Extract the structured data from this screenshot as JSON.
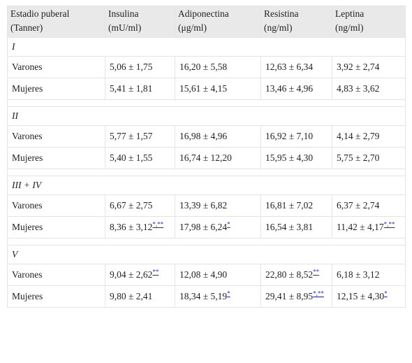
{
  "table": {
    "header": [
      [
        "Estadio puberal",
        "(Tanner)"
      ],
      [
        "Insulina",
        "(mU/ml)"
      ],
      [
        "Adiponectina",
        "(μg/ml)"
      ],
      [
        "Resistina",
        "(ng/ml)"
      ],
      [
        "Leptina",
        "(ng/ml)"
      ]
    ],
    "groups": [
      {
        "stage": "I",
        "rows": [
          {
            "label": "Varones",
            "cells": [
              {
                "text": "5,06 ± 1,75"
              },
              {
                "text": "16,20 ± 5,58"
              },
              {
                "text": "12,63 ± 6,34"
              },
              {
                "text": "3,92 ± 2,74"
              }
            ]
          },
          {
            "label": "Mujeres",
            "cells": [
              {
                "text": "5,41 ± 1,81"
              },
              {
                "text": "15,61 ± 4,15"
              },
              {
                "text": "13,46 ± 4,96"
              },
              {
                "text": "4,83 ± 3,62"
              }
            ]
          }
        ]
      },
      {
        "stage": "II",
        "rows": [
          {
            "label": "Varones",
            "cells": [
              {
                "text": "5,77 ± 1,57"
              },
              {
                "text": "16,98 ± 4,96"
              },
              {
                "text": "16,92 ± 7,10"
              },
              {
                "text": "4,14 ± 2,79"
              }
            ]
          },
          {
            "label": "Mujeres",
            "cells": [
              {
                "text": "5,40 ± 1,55"
              },
              {
                "text": "16,74 ± 12,20"
              },
              {
                "text": "15,95 ± 4,30"
              },
              {
                "text": "5,75 ± 2,70"
              }
            ]
          }
        ]
      },
      {
        "stage": "III + IV",
        "rows": [
          {
            "label": "Varones",
            "cells": [
              {
                "text": "6,67 ± 2,75"
              },
              {
                "text": "13,39 ± 6,82"
              },
              {
                "text": "16,81 ± 7,02"
              },
              {
                "text": "6,37 ± 2,74"
              }
            ]
          },
          {
            "label": "Mujeres",
            "cells": [
              {
                "text": "8,36 ± 3,12",
                "note": "*,**"
              },
              {
                "text": "17,98 ± 6,24",
                "note": "*"
              },
              {
                "text": "16,54 ± 3,81"
              },
              {
                "text": "11,42 ± 4,17",
                "note": "*,**"
              }
            ]
          }
        ]
      },
      {
        "stage": "V",
        "rows": [
          {
            "label": "Varones",
            "cells": [
              {
                "text": "9,04 ± 2,62",
                "note": "**"
              },
              {
                "text": "12,08 ± 4,90"
              },
              {
                "text": "22,80 ± 8,52",
                "note": "**"
              },
              {
                "text": "6,18 ± 3,12"
              }
            ]
          },
          {
            "label": "Mujeres",
            "cells": [
              {
                "text": "9,80 ± 2,41"
              },
              {
                "text": "18,34 ± 5,19",
                "note": "*"
              },
              {
                "text": "29,41 ± 8,95",
                "note": "*,**"
              },
              {
                "text": "12,15 ± 4,30",
                "note": "*"
              }
            ]
          }
        ]
      }
    ]
  }
}
